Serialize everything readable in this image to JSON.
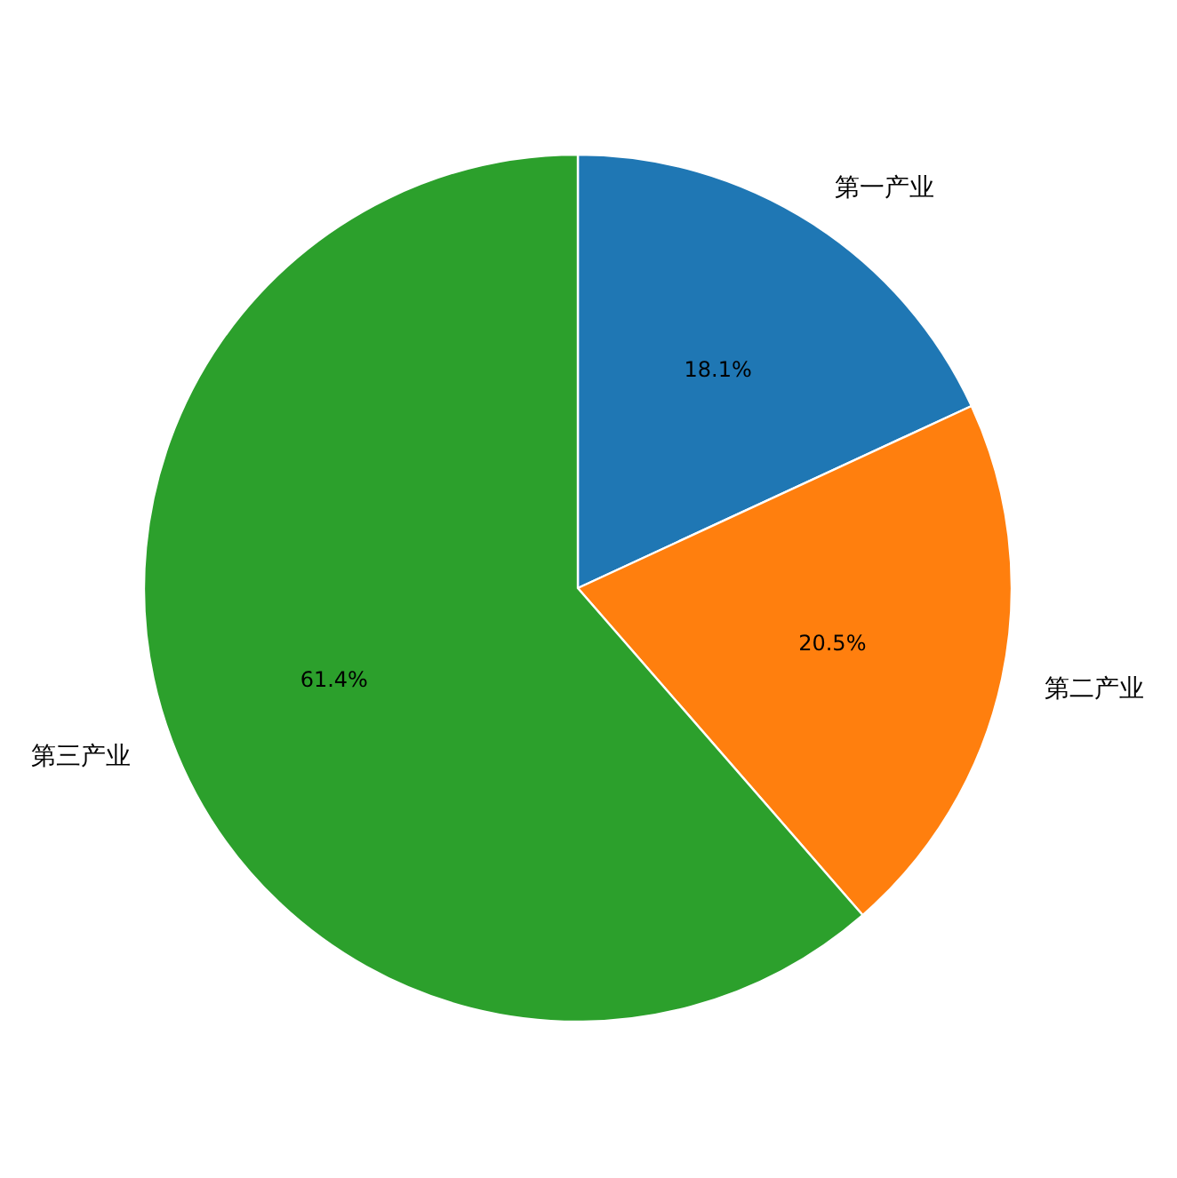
{
  "chart_data": {
    "type": "pie",
    "categories": [
      "第一产业",
      "第二产业",
      "第三产业"
    ],
    "values": [
      18.1,
      20.5,
      61.4
    ],
    "colors": [
      "#1f77b4",
      "#ff7f0e",
      "#2ca02c"
    ],
    "value_labels": [
      "18.1%",
      "20.5%",
      "61.4%"
    ]
  }
}
